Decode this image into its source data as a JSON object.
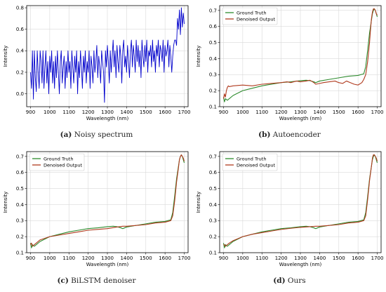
{
  "chart_data": [
    {
      "id": "a",
      "type": "line",
      "caption_label": "(a)",
      "caption_text": "Noisy spectrum",
      "xlabel": "Wavelength (nm)",
      "ylabel": "Intensity",
      "xlim": [
        880,
        1720
      ],
      "ylim": [
        -0.12,
        0.82
      ],
      "xticks": [
        900,
        1000,
        1100,
        1200,
        1300,
        1400,
        1500,
        1600,
        1700
      ],
      "yticks": [
        0.0,
        0.2,
        0.4,
        0.6,
        0.8
      ],
      "ytick_labels": [
        "0.0",
        "0.2",
        "0.4",
        "0.6",
        "0.8"
      ],
      "grid": true,
      "legend": null,
      "series": [
        {
          "color": "#0000cc",
          "x": [
            900,
            905,
            910,
            915,
            920,
            925,
            930,
            935,
            940,
            945,
            950,
            955,
            960,
            965,
            970,
            975,
            980,
            985,
            990,
            995,
            1000,
            1005,
            1010,
            1015,
            1020,
            1025,
            1030,
            1035,
            1040,
            1045,
            1050,
            1055,
            1060,
            1065,
            1070,
            1075,
            1080,
            1085,
            1090,
            1095,
            1100,
            1105,
            1110,
            1115,
            1120,
            1125,
            1130,
            1135,
            1140,
            1145,
            1150,
            1155,
            1160,
            1165,
            1170,
            1175,
            1180,
            1185,
            1190,
            1195,
            1200,
            1205,
            1210,
            1215,
            1220,
            1225,
            1230,
            1235,
            1240,
            1245,
            1250,
            1255,
            1260,
            1265,
            1270,
            1275,
            1280,
            1285,
            1290,
            1295,
            1300,
            1305,
            1310,
            1315,
            1320,
            1325,
            1330,
            1335,
            1340,
            1345,
            1350,
            1355,
            1360,
            1365,
            1370,
            1375,
            1380,
            1385,
            1390,
            1395,
            1400,
            1405,
            1410,
            1415,
            1420,
            1425,
            1430,
            1435,
            1440,
            1445,
            1450,
            1455,
            1460,
            1465,
            1470,
            1475,
            1480,
            1485,
            1490,
            1495,
            1500,
            1505,
            1510,
            1515,
            1520,
            1525,
            1530,
            1535,
            1540,
            1545,
            1550,
            1555,
            1560,
            1565,
            1570,
            1575,
            1580,
            1585,
            1590,
            1595,
            1600,
            1605,
            1610,
            1615,
            1620,
            1625,
            1630,
            1635,
            1640,
            1645,
            1650,
            1655,
            1660,
            1665,
            1670,
            1675,
            1680,
            1685,
            1690,
            1695,
            1700
          ],
          "y": [
            0.2,
            0.05,
            0.4,
            -0.05,
            0.4,
            0.15,
            0.02,
            0.4,
            0.2,
            0.05,
            0.4,
            0.3,
            0.1,
            0.4,
            0.05,
            0.25,
            0.4,
            0.1,
            0.3,
            0.0,
            0.35,
            0.2,
            0.4,
            0.1,
            0.3,
            0.05,
            0.35,
            0.15,
            0.4,
            0.2,
            0.0,
            0.3,
            0.4,
            0.1,
            0.25,
            0.35,
            0.05,
            0.3,
            0.15,
            0.4,
            0.2,
            0.3,
            0.05,
            0.4,
            0.25,
            0.1,
            0.35,
            0.2,
            0.4,
            0.0,
            0.3,
            0.15,
            0.4,
            0.25,
            0.05,
            0.35,
            0.2,
            0.4,
            0.1,
            0.3,
            0.2,
            0.4,
            0.05,
            0.35,
            0.25,
            0.1,
            0.4,
            0.2,
            0.3,
            0.45,
            0.15,
            0.35,
            0.25,
            0.1,
            0.4,
            0.3,
            0.2,
            -0.08,
            0.4,
            0.25,
            0.45,
            0.3,
            0.1,
            0.4,
            0.2,
            0.35,
            0.5,
            0.25,
            0.4,
            0.15,
            0.45,
            0.3,
            0.2,
            0.45,
            0.35,
            0.1,
            0.4,
            0.5,
            0.25,
            0.35,
            0.2,
            0.45,
            0.3,
            0.15,
            0.4,
            0.5,
            0.25,
            0.45,
            0.35,
            0.2,
            0.5,
            0.3,
            0.45,
            0.25,
            0.4,
            0.15,
            0.5,
            0.35,
            0.25,
            0.45,
            0.3,
            0.5,
            0.2,
            0.4,
            0.35,
            0.45,
            0.25,
            0.5,
            0.3,
            0.4,
            0.2,
            0.45,
            0.35,
            0.5,
            0.25,
            0.45,
            0.4,
            0.3,
            0.5,
            0.2,
            0.45,
            0.35,
            0.4,
            0.5,
            0.25,
            0.45,
            0.35,
            0.2,
            0.35,
            0.45,
            0.5,
            0.5,
            0.45,
            0.7,
            0.6,
            0.78,
            0.55,
            0.8,
            0.62,
            0.75,
            0.65
          ]
        }
      ]
    },
    {
      "id": "b",
      "type": "line",
      "caption_label": "(b)",
      "caption_text": "Autoencoder",
      "xlabel": "Wavelength (nm)",
      "ylabel": "Intensity",
      "xlim": [
        880,
        1720
      ],
      "ylim": [
        0.1,
        0.73
      ],
      "xticks": [
        900,
        1000,
        1100,
        1200,
        1300,
        1400,
        1500,
        1600,
        1700
      ],
      "yticks": [
        0.1,
        0.2,
        0.3,
        0.4,
        0.5,
        0.6,
        0.7
      ],
      "ytick_labels": [
        "0.1",
        "0.2",
        "0.3",
        "0.4",
        "0.5",
        "0.6",
        "0.7"
      ],
      "grid": true,
      "legend": "top-left",
      "series": [
        {
          "name": "Ground Truth",
          "color": "#2e8b2e",
          "x": [
            900,
            905,
            910,
            920,
            930,
            950,
            1000,
            1050,
            1100,
            1150,
            1200,
            1250,
            1300,
            1330,
            1350,
            1370,
            1380,
            1390,
            1400,
            1450,
            1500,
            1550,
            1600,
            1630,
            1640,
            1650,
            1660,
            1670,
            1675,
            1680,
            1685,
            1690,
            1695,
            1700
          ],
          "y": [
            0.16,
            0.13,
            0.15,
            0.14,
            0.15,
            0.17,
            0.2,
            0.215,
            0.23,
            0.24,
            0.25,
            0.255,
            0.262,
            0.265,
            0.262,
            0.255,
            0.25,
            0.255,
            0.26,
            0.27,
            0.28,
            0.29,
            0.295,
            0.305,
            0.35,
            0.45,
            0.56,
            0.64,
            0.68,
            0.7,
            0.71,
            0.7,
            0.68,
            0.66
          ]
        },
        {
          "name": "Denoised Output",
          "color": "#b03a1e",
          "x": [
            900,
            905,
            910,
            915,
            920,
            925,
            930,
            950,
            1000,
            1050,
            1100,
            1150,
            1200,
            1230,
            1250,
            1280,
            1300,
            1330,
            1350,
            1370,
            1380,
            1400,
            1420,
            1450,
            1480,
            1500,
            1520,
            1540,
            1560,
            1580,
            1600,
            1620,
            1630,
            1640,
            1650,
            1660,
            1665,
            1670,
            1675,
            1680,
            1685,
            1690,
            1695,
            1700
          ],
          "y": [
            0.15,
            0.18,
            0.16,
            0.2,
            0.22,
            0.23,
            0.225,
            0.23,
            0.235,
            0.23,
            0.24,
            0.245,
            0.25,
            0.255,
            0.25,
            0.26,
            0.255,
            0.26,
            0.265,
            0.25,
            0.24,
            0.245,
            0.25,
            0.255,
            0.26,
            0.25,
            0.245,
            0.26,
            0.25,
            0.24,
            0.235,
            0.25,
            0.27,
            0.3,
            0.38,
            0.5,
            0.58,
            0.65,
            0.69,
            0.71,
            0.71,
            0.7,
            0.68,
            0.67
          ]
        }
      ]
    },
    {
      "id": "c",
      "type": "line",
      "caption_label": "(c)",
      "caption_text": "BiLSTM denoiser",
      "xlabel": "Wavelength (nm)",
      "ylabel": "Intensity",
      "xlim": [
        880,
        1720
      ],
      "ylim": [
        0.1,
        0.73
      ],
      "xticks": [
        900,
        1000,
        1100,
        1200,
        1300,
        1400,
        1500,
        1600,
        1700
      ],
      "yticks": [
        0.1,
        0.2,
        0.3,
        0.4,
        0.5,
        0.6,
        0.7
      ],
      "ytick_labels": [
        "0.1",
        "0.2",
        "0.3",
        "0.4",
        "0.5",
        "0.6",
        "0.7"
      ],
      "grid": true,
      "legend": "top-left",
      "series": [
        {
          "name": "Ground Truth",
          "color": "#2e8b2e",
          "x": [
            900,
            905,
            910,
            920,
            930,
            950,
            1000,
            1050,
            1100,
            1150,
            1200,
            1250,
            1300,
            1330,
            1350,
            1370,
            1380,
            1390,
            1400,
            1450,
            1500,
            1550,
            1600,
            1630,
            1640,
            1650,
            1660,
            1670,
            1675,
            1680,
            1685,
            1690,
            1695,
            1700
          ],
          "y": [
            0.16,
            0.13,
            0.15,
            0.14,
            0.15,
            0.17,
            0.2,
            0.215,
            0.23,
            0.24,
            0.25,
            0.255,
            0.262,
            0.265,
            0.262,
            0.255,
            0.25,
            0.255,
            0.26,
            0.27,
            0.28,
            0.29,
            0.295,
            0.305,
            0.35,
            0.45,
            0.56,
            0.64,
            0.68,
            0.7,
            0.71,
            0.7,
            0.68,
            0.66
          ]
        },
        {
          "name": "Denoised Output",
          "color": "#b03a1e",
          "x": [
            900,
            905,
            910,
            920,
            930,
            950,
            1000,
            1050,
            1100,
            1150,
            1200,
            1250,
            1300,
            1350,
            1380,
            1400,
            1450,
            1500,
            1550,
            1600,
            1630,
            1640,
            1650,
            1660,
            1670,
            1675,
            1680,
            1685,
            1690,
            1695,
            1700
          ],
          "y": [
            0.15,
            0.16,
            0.14,
            0.15,
            0.16,
            0.18,
            0.2,
            0.21,
            0.22,
            0.23,
            0.24,
            0.245,
            0.25,
            0.26,
            0.265,
            0.265,
            0.27,
            0.275,
            0.285,
            0.29,
            0.3,
            0.33,
            0.42,
            0.54,
            0.63,
            0.68,
            0.7,
            0.71,
            0.7,
            0.69,
            0.67
          ]
        }
      ]
    },
    {
      "id": "d",
      "type": "line",
      "caption_label": "(d)",
      "caption_text": "Ours",
      "xlabel": "Wavelength (nm)",
      "ylabel": "Intensity",
      "xlim": [
        880,
        1720
      ],
      "ylim": [
        0.1,
        0.73
      ],
      "xticks": [
        900,
        1000,
        1100,
        1200,
        1300,
        1400,
        1500,
        1600,
        1700
      ],
      "yticks": [
        0.1,
        0.2,
        0.3,
        0.4,
        0.5,
        0.6,
        0.7
      ],
      "ytick_labels": [
        "0.1",
        "0.2",
        "0.3",
        "0.4",
        "0.5",
        "0.6",
        "0.7"
      ],
      "grid": true,
      "legend": "top-left",
      "series": [
        {
          "name": "Ground Truth",
          "color": "#2e8b2e",
          "x": [
            900,
            905,
            910,
            920,
            930,
            950,
            1000,
            1050,
            1100,
            1150,
            1200,
            1250,
            1300,
            1330,
            1350,
            1370,
            1380,
            1390,
            1400,
            1450,
            1500,
            1550,
            1600,
            1630,
            1640,
            1650,
            1660,
            1670,
            1675,
            1680,
            1685,
            1690,
            1695,
            1700
          ],
          "y": [
            0.16,
            0.13,
            0.15,
            0.14,
            0.15,
            0.17,
            0.2,
            0.215,
            0.23,
            0.24,
            0.25,
            0.255,
            0.262,
            0.265,
            0.262,
            0.255,
            0.25,
            0.255,
            0.26,
            0.27,
            0.28,
            0.29,
            0.295,
            0.305,
            0.35,
            0.45,
            0.56,
            0.64,
            0.68,
            0.7,
            0.71,
            0.7,
            0.68,
            0.66
          ]
        },
        {
          "name": "Denoised Output",
          "color": "#b03a1e",
          "x": [
            900,
            905,
            910,
            920,
            930,
            950,
            1000,
            1050,
            1100,
            1150,
            1200,
            1250,
            1300,
            1350,
            1380,
            1400,
            1450,
            1500,
            1550,
            1600,
            1630,
            1640,
            1650,
            1660,
            1670,
            1675,
            1680,
            1685,
            1690,
            1695,
            1700
          ],
          "y": [
            0.15,
            0.15,
            0.14,
            0.15,
            0.16,
            0.175,
            0.2,
            0.215,
            0.225,
            0.235,
            0.245,
            0.252,
            0.258,
            0.262,
            0.265,
            0.265,
            0.27,
            0.275,
            0.285,
            0.29,
            0.3,
            0.33,
            0.43,
            0.55,
            0.64,
            0.69,
            0.71,
            0.71,
            0.7,
            0.69,
            0.67
          ]
        }
      ]
    }
  ]
}
